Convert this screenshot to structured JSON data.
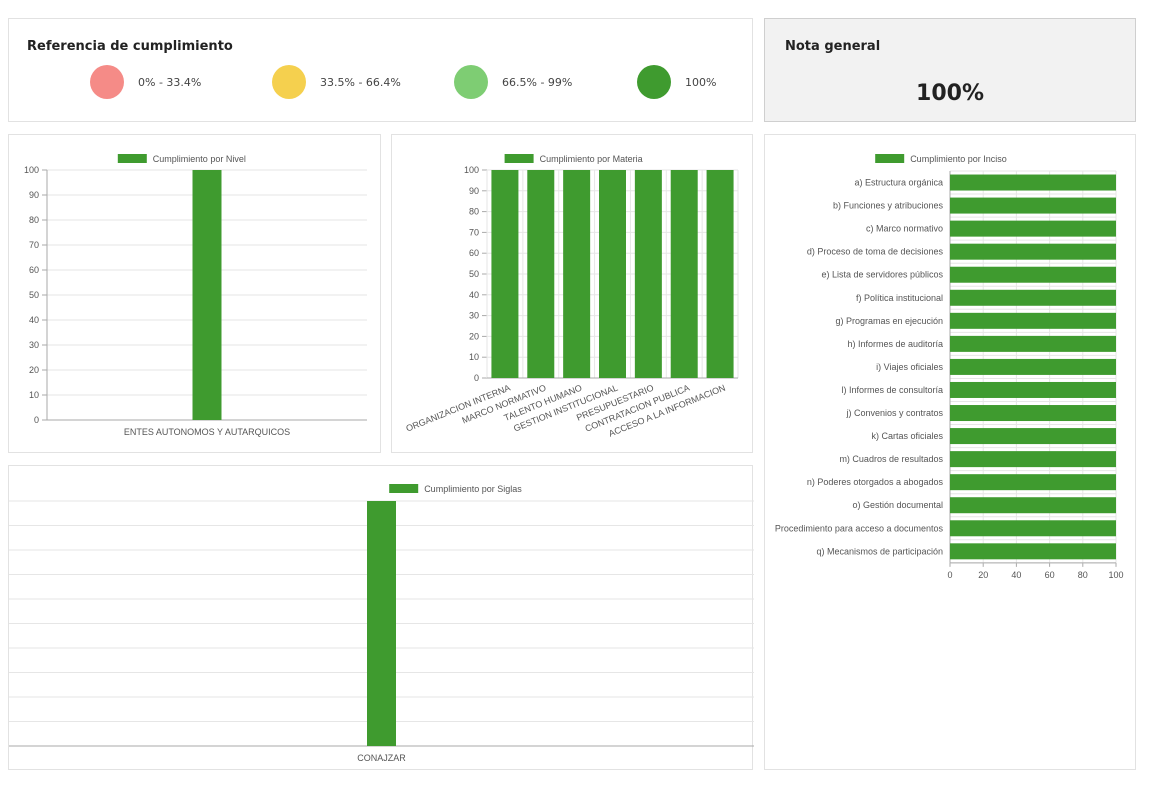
{
  "colors": {
    "bar": "#3f9b2f",
    "grid": "#e6e6e6",
    "axis": "#aaaaaa",
    "ref_red": "#f58b87",
    "ref_yellow": "#f5d04e",
    "ref_lightgreen": "#7ecd73",
    "ref_darkgreen": "#3f9b2f"
  },
  "reference": {
    "title": "Referencia de cumplimiento",
    "items": [
      {
        "label": "0% - 33.4%",
        "color": "#f58b87"
      },
      {
        "label": "33.5% - 66.4%",
        "color": "#f5d04e"
      },
      {
        "label": "66.5% - 99%",
        "color": "#7ecd73"
      },
      {
        "label": "100%",
        "color": "#3f9b2f"
      }
    ]
  },
  "nota": {
    "title": "Nota general",
    "value": "100%"
  },
  "chart_data": [
    {
      "id": "nivel",
      "type": "bar",
      "legend": "Cumplimiento por Nivel",
      "categories": [
        "ENTES AUTONOMOS Y AUTARQUICOS"
      ],
      "values": [
        100
      ],
      "ylim": [
        0,
        100
      ],
      "yticks": [
        0,
        10,
        20,
        30,
        40,
        50,
        60,
        70,
        80,
        90,
        100
      ],
      "grid": true,
      "legend_position": "top"
    },
    {
      "id": "materia",
      "type": "bar",
      "legend": "Cumplimiento por Materia",
      "categories": [
        "ORGANIZACION INTERNA",
        "MARCO NORMATIVO",
        "TALENTO HUMANO",
        "GESTION INSTITUCIONAL",
        "PRESUPUESTARIO",
        "CONTRATACION PUBLICA",
        "ACCESO A LA INFORMACION"
      ],
      "values": [
        100,
        100,
        100,
        100,
        100,
        100,
        100
      ],
      "ylim": [
        0,
        100
      ],
      "yticks": [
        0,
        10,
        20,
        30,
        40,
        50,
        60,
        70,
        80,
        90,
        100
      ],
      "grid": true,
      "legend_position": "top"
    },
    {
      "id": "siglas",
      "type": "bar",
      "legend": "Cumplimiento por Siglas",
      "categories": [
        "CONAJZAR"
      ],
      "values": [
        100
      ],
      "ylim": [
        0,
        100
      ],
      "grid": true,
      "legend_position": "top"
    },
    {
      "id": "inciso",
      "type": "bar",
      "orientation": "horizontal",
      "legend": "Cumplimiento por Inciso",
      "categories": [
        "a) Estructura orgánica",
        "b) Funciones y atribuciones",
        "c) Marco normativo",
        "d) Proceso de toma de decisiones",
        "e) Lista de servidores públicos",
        "f) Política institucional",
        "g) Programas en ejecución",
        "h) Informes de auditoría",
        "i) Viajes oficiales",
        "l) Informes de consultoría",
        "j) Convenios y contratos",
        "k) Cartas oficiales",
        "m)  Cuadros de resultados",
        "n)  Poderes otorgados a abogados",
        "o) Gestión documental",
        "Procedimiento para acceso a documentos",
        "q) Mecanismos de participación"
      ],
      "values": [
        100,
        100,
        100,
        100,
        100,
        100,
        100,
        100,
        100,
        100,
        100,
        100,
        100,
        100,
        100,
        100,
        100
      ],
      "xlim": [
        0,
        100
      ],
      "xticks": [
        0,
        20,
        40,
        60,
        80,
        100
      ],
      "grid": true,
      "legend_position": "top"
    }
  ]
}
